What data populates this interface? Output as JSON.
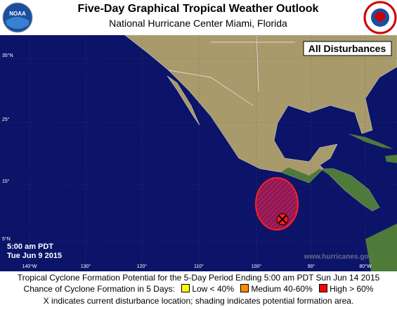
{
  "header": {
    "title": "Five-Day Graphical Tropical Weather Outlook",
    "subtitle": "National Hurricane Center  Miami, Florida",
    "noaa_logo": "NOAA"
  },
  "map": {
    "label": "All Disturbances",
    "latitude_labels": [
      "35°N",
      "25°",
      "15°",
      "5°N"
    ],
    "longitude_labels": [
      "140°W",
      "130°",
      "120°",
      "110°",
      "100°",
      "90°",
      "80°W"
    ],
    "issued_time": "5:00 am PDT",
    "issued_date": "Tue Jun 9 2015",
    "website": "www.hurricanes.gov"
  },
  "footer": {
    "line1": "Tropical Cyclone Formation Potential for the 5-Day Period Ending 5:00 am PDT Sun Jun 14 2015",
    "legend_title": "Chance of Cyclone Formation in 5 Days:",
    "legend": [
      "Low < 40%",
      "Medium 40-60%",
      "High > 60%"
    ],
    "line3": "X indicates current disturbance location; shading indicates potential formation area."
  }
}
